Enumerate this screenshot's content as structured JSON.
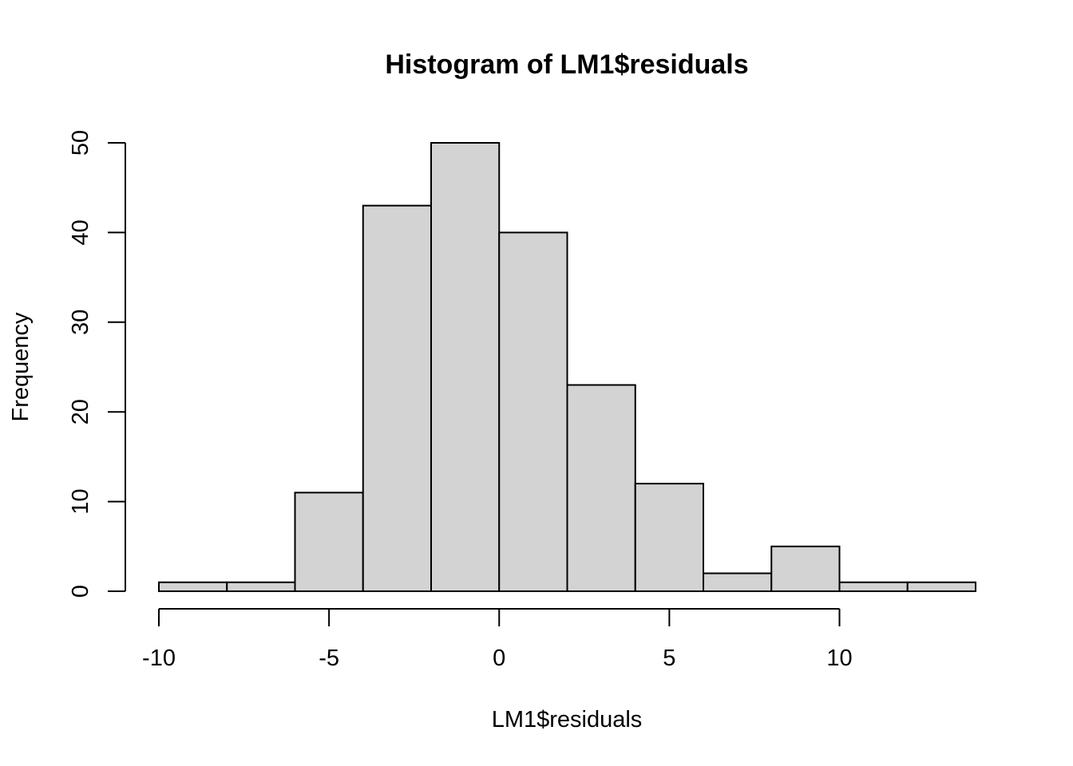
{
  "chart_data": {
    "type": "bar",
    "title": "Histogram of LM1$residuals",
    "xlabel": "LM1$residuals",
    "ylabel": "Frequency",
    "bins": [
      {
        "from": -10,
        "to": -8,
        "count": 1
      },
      {
        "from": -8,
        "to": -6,
        "count": 1
      },
      {
        "from": -6,
        "to": -4,
        "count": 11
      },
      {
        "from": -4,
        "to": -2,
        "count": 43
      },
      {
        "from": -2,
        "to": 0,
        "count": 50
      },
      {
        "from": 0,
        "to": 2,
        "count": 40
      },
      {
        "from": 2,
        "to": 4,
        "count": 23
      },
      {
        "from": 4,
        "to": 6,
        "count": 12
      },
      {
        "from": 6,
        "to": 8,
        "count": 2
      },
      {
        "from": 8,
        "to": 10,
        "count": 5
      },
      {
        "from": 10,
        "to": 12,
        "count": 1
      },
      {
        "from": 12,
        "to": 14,
        "count": 1
      }
    ],
    "xlim": [
      -10,
      14
    ],
    "ylim": [
      0,
      50
    ],
    "x_ticks": [
      -10,
      -5,
      0,
      5,
      10
    ],
    "x_tick_labels": [
      "-10",
      "-5",
      "0",
      "5",
      "10"
    ],
    "y_ticks": [
      0,
      10,
      20,
      30,
      40,
      50
    ],
    "y_tick_labels": [
      "0",
      "10",
      "20",
      "30",
      "40",
      "50"
    ],
    "bar_fill": "#d3d3d3",
    "bar_stroke": "#000000",
    "grid": false,
    "legend": "none"
  }
}
